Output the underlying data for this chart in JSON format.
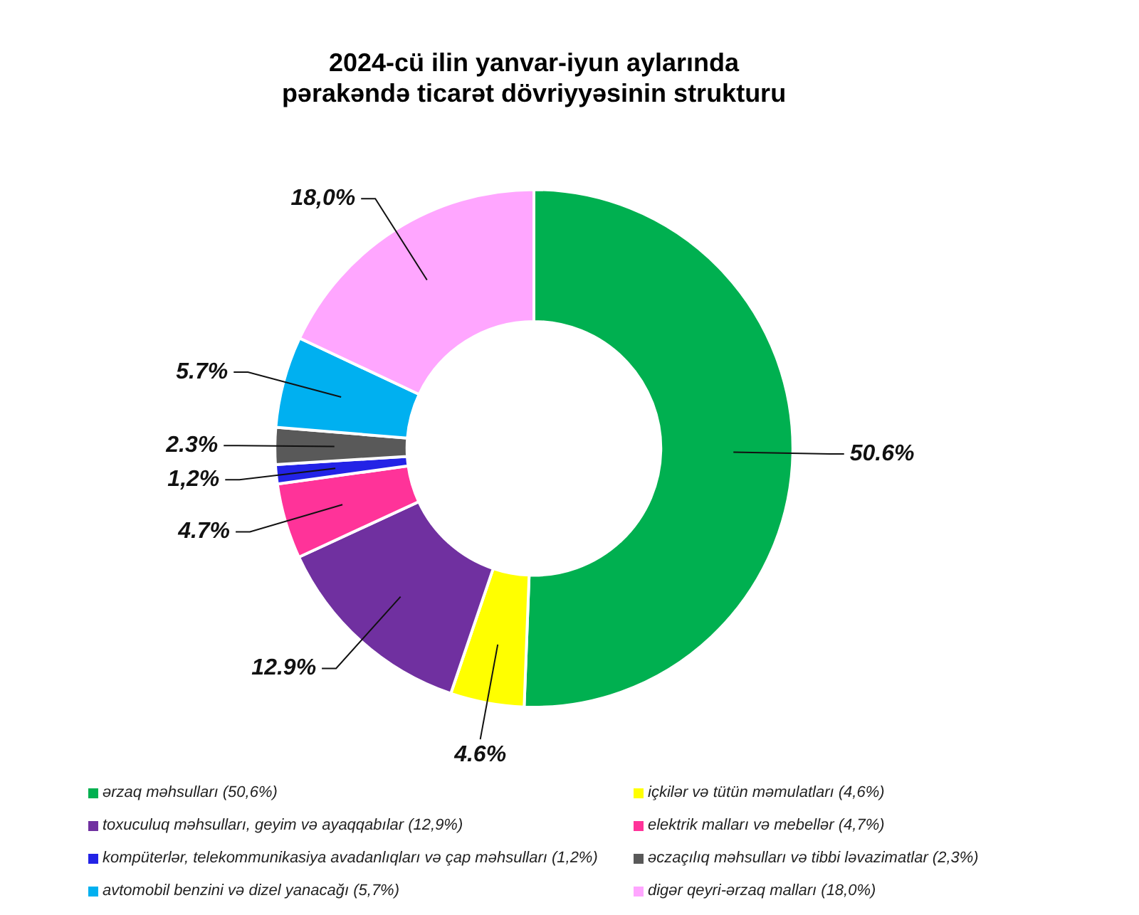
{
  "chart_data": {
    "type": "donut",
    "title": "2024-cü ilin yanvar-iyun aylarında\npərakəndə ticarət dövriyyəsinin strukturu",
    "categories": [
      "ərzaq məhsulları (50,6%)",
      "içkilər və tütün məmulatları (4,6%)",
      "toxuculuq məhsulları, geyim və ayaqqabılar (12,9%)",
      "elektrik malları və mebellər (4,7%)",
      "kompüterlər, telekommunikasiya avadanlıqları və çap məhsulları (1,2%)",
      "əczaçılıq məhsulları və tibbi ləvazimatlar (2,3%)",
      "avtomobil benzini və dizel yanacağı (5,7%)",
      "digər qeyri-ərzaq malları (18,0%)"
    ],
    "values": [
      50.6,
      4.6,
      12.9,
      4.7,
      1.2,
      2.3,
      5.7,
      18.0
    ],
    "colors": [
      "#00b050",
      "#ffff00",
      "#7030a0",
      "#ff3399",
      "#2323e6",
      "#595959",
      "#00b0f0",
      "#ffa6ff"
    ],
    "value_labels": [
      "50.6%",
      "4.6%",
      "12.9%",
      "4.7%",
      "1,2%",
      "2.3%",
      "5.7%",
      "18,0%"
    ],
    "legend": "bottom"
  }
}
